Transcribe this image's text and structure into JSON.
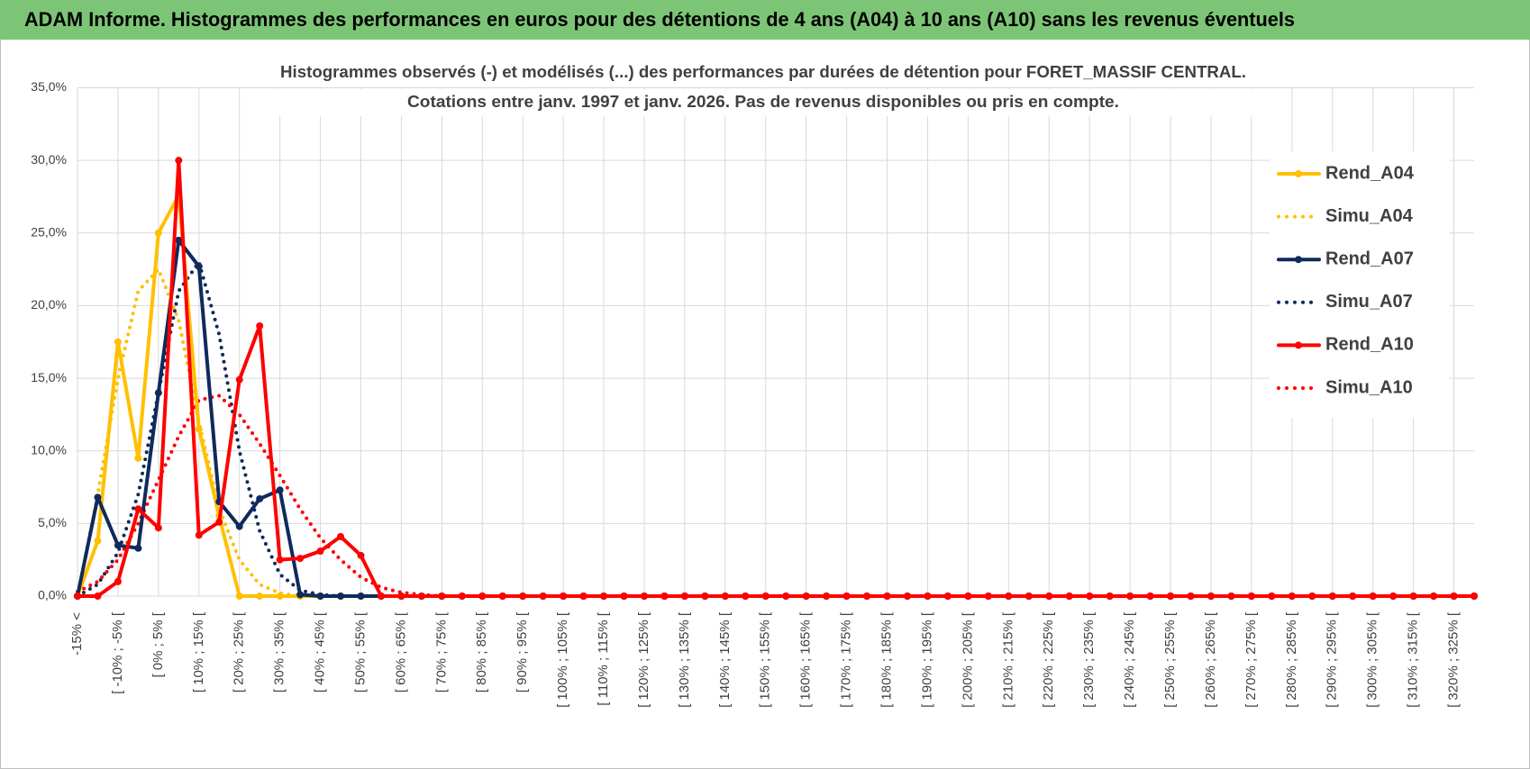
{
  "header": {
    "title": "ADAM Informe. Histogrammes des performances en euros pour des détentions de 4 ans (A04) à 10 ans (A10) sans les revenus éventuels"
  },
  "chart_data": {
    "type": "line",
    "title": [
      "Histogrammes observés (-) et modélisés (...) des performances par durées de détention pour FORET_MASSIF CENTRAL.",
      "Cotations entre janv. 1997 et janv. 2026. Pas de revenus disponibles ou pris en compte."
    ],
    "categories": [
      "-15% <",
      null,
      "[ -10% ; -5% [",
      null,
      "[ 0% ; 5% [",
      null,
      "[ 10% ; 15% [",
      null,
      "[ 20% ; 25% [",
      null,
      "[ 30% ; 35% [",
      null,
      "[ 40% ; 45% [",
      null,
      "[ 50% ; 55% [",
      null,
      "[ 60% ; 65% [",
      null,
      "[ 70% ; 75% [",
      null,
      "[ 80% ; 85% [",
      null,
      "[ 90% ; 95% [",
      null,
      "[ 100% ; 105% [",
      null,
      "[ 110% ; 115% [",
      null,
      "[ 120% ; 125% [",
      null,
      "[ 130% ; 135% [",
      null,
      "[ 140% ; 145% [",
      null,
      "[ 150% ; 155% [",
      null,
      "[ 160% ; 165% [",
      null,
      "[ 170% ; 175% [",
      null,
      "[ 180% ; 185% [",
      null,
      "[ 190% ; 195% [",
      null,
      "[ 200% ; 205% [",
      null,
      "[ 210% ; 215% [",
      null,
      "[ 220% ; 225% [",
      null,
      "[ 230% ; 235% [",
      null,
      "[ 240% ; 245% [",
      null,
      "[ 250% ; 255% [",
      null,
      "[ 260% ; 265% [",
      null,
      "[ 270% ; 275% [",
      null,
      "[ 280% ; 285% [",
      null,
      "[ 290% ; 295% [",
      null,
      "[ 300% ; 305% [",
      null,
      "[ 310% ; 315% [",
      null,
      "[ 320% ; 325% [",
      null
    ],
    "series": [
      {
        "name": "Rend_A04",
        "color": "#ffc000",
        "line_style": "solid",
        "markers": true,
        "values": [
          0,
          3.8,
          17.5,
          9.5,
          25,
          27.6,
          11.5,
          5.5,
          0,
          0,
          0,
          0,
          0,
          0,
          0,
          0,
          0,
          0,
          0,
          0,
          0,
          0,
          0,
          0,
          0,
          0,
          0,
          0,
          0,
          0,
          0,
          0,
          0,
          0,
          0,
          0,
          0,
          0,
          0,
          0,
          0,
          0,
          0,
          0,
          0,
          0,
          0,
          0,
          0,
          0,
          0,
          0,
          0,
          0,
          0,
          0,
          0,
          0,
          0,
          0,
          0,
          0,
          0,
          0,
          0,
          0,
          0,
          0,
          0,
          0
        ]
      },
      {
        "name": "Simu_A04",
        "color": "#ffc000",
        "line_style": "dotted",
        "markers": false,
        "values": [
          0,
          7,
          15,
          21,
          22.5,
          19,
          12,
          6,
          2.5,
          0.8,
          0.2,
          0,
          0,
          0,
          0,
          0,
          0,
          0,
          0,
          0,
          0,
          0,
          0,
          0,
          0,
          0,
          0,
          0,
          0,
          0,
          0,
          0,
          0,
          0,
          0,
          0,
          0,
          0,
          0,
          0,
          0,
          0,
          0,
          0,
          0,
          0,
          0,
          0,
          0,
          0,
          0,
          0,
          0,
          0,
          0,
          0,
          0,
          0,
          0,
          0,
          0,
          0,
          0,
          0,
          0,
          0,
          0,
          0,
          0,
          0
        ]
      },
      {
        "name": "Rend_A07",
        "color": "#0f2a5c",
        "line_style": "solid",
        "markers": true,
        "values": [
          0,
          6.8,
          3.5,
          3.3,
          14,
          24.5,
          22.7,
          6.5,
          4.8,
          6.7,
          7.3,
          0.1,
          0,
          0,
          0,
          0,
          0,
          0,
          0,
          0,
          0,
          0,
          0,
          0,
          0,
          0,
          0,
          0,
          0,
          0,
          0,
          0,
          0,
          0,
          0,
          0,
          0,
          0,
          0,
          0,
          0,
          0,
          0,
          0,
          0,
          0,
          0,
          0,
          0,
          0,
          0,
          0,
          0,
          0,
          0,
          0,
          0,
          0,
          0,
          0,
          0,
          0,
          0,
          0,
          0,
          0,
          0,
          0,
          0,
          0
        ]
      },
      {
        "name": "Simu_A07",
        "color": "#0f2a5c",
        "line_style": "dotted",
        "markers": false,
        "values": [
          0,
          0.8,
          3,
          7,
          14,
          21,
          23,
          18,
          10,
          4.5,
          1.5,
          0.4,
          0.1,
          0,
          0,
          0,
          0,
          0,
          0,
          0,
          0,
          0,
          0,
          0,
          0,
          0,
          0,
          0,
          0,
          0,
          0,
          0,
          0,
          0,
          0,
          0,
          0,
          0,
          0,
          0,
          0,
          0,
          0,
          0,
          0,
          0,
          0,
          0,
          0,
          0,
          0,
          0,
          0,
          0,
          0,
          0,
          0,
          0,
          0,
          0,
          0,
          0,
          0,
          0,
          0,
          0,
          0,
          0,
          0,
          0
        ]
      },
      {
        "name": "Rend_A10",
        "color": "#ff0000",
        "line_style": "solid",
        "markers": true,
        "values": [
          0,
          0,
          1,
          6,
          4.7,
          30,
          4.2,
          5.1,
          14.9,
          18.6,
          2.5,
          2.6,
          3.1,
          4.1,
          2.8,
          0,
          0,
          0,
          0,
          0,
          0,
          0,
          0,
          0,
          0,
          0,
          0,
          0,
          0,
          0,
          0,
          0,
          0,
          0,
          0,
          0,
          0,
          0,
          0,
          0,
          0,
          0,
          0,
          0,
          0,
          0,
          0,
          0,
          0,
          0,
          0,
          0,
          0,
          0,
          0,
          0,
          0,
          0,
          0,
          0,
          0,
          0,
          0,
          0,
          0,
          0,
          0,
          0,
          0,
          0
        ]
      },
      {
        "name": "Simu_A10",
        "color": "#ff0000",
        "line_style": "dotted",
        "markers": false,
        "values": [
          0.3,
          1,
          2.5,
          5,
          8,
          11,
          13.5,
          13.8,
          12.5,
          10.5,
          8.3,
          6,
          4,
          2.5,
          1.3,
          0.6,
          0.25,
          0.1,
          0,
          0,
          0,
          0,
          0,
          0,
          0,
          0,
          0,
          0,
          0,
          0,
          0,
          0,
          0,
          0,
          0,
          0,
          0,
          0,
          0,
          0,
          0,
          0,
          0,
          0,
          0,
          0,
          0,
          0,
          0,
          0,
          0,
          0,
          0,
          0,
          0,
          0,
          0,
          0,
          0,
          0,
          0,
          0,
          0,
          0,
          0,
          0,
          0,
          0,
          0,
          0
        ]
      }
    ],
    "ylim": [
      0,
      35
    ],
    "yticks": [
      {
        "value": 0,
        "label": "0,0%"
      },
      {
        "value": 5,
        "label": "5,0%"
      },
      {
        "value": 10,
        "label": "10,0%"
      },
      {
        "value": 15,
        "label": "15,0%"
      },
      {
        "value": 20,
        "label": "20,0%"
      },
      {
        "value": 25,
        "label": "25,0%"
      },
      {
        "value": 30,
        "label": "30,0%"
      },
      {
        "value": 35,
        "label": "35,0%"
      }
    ],
    "grid": true,
    "legend": "right"
  }
}
